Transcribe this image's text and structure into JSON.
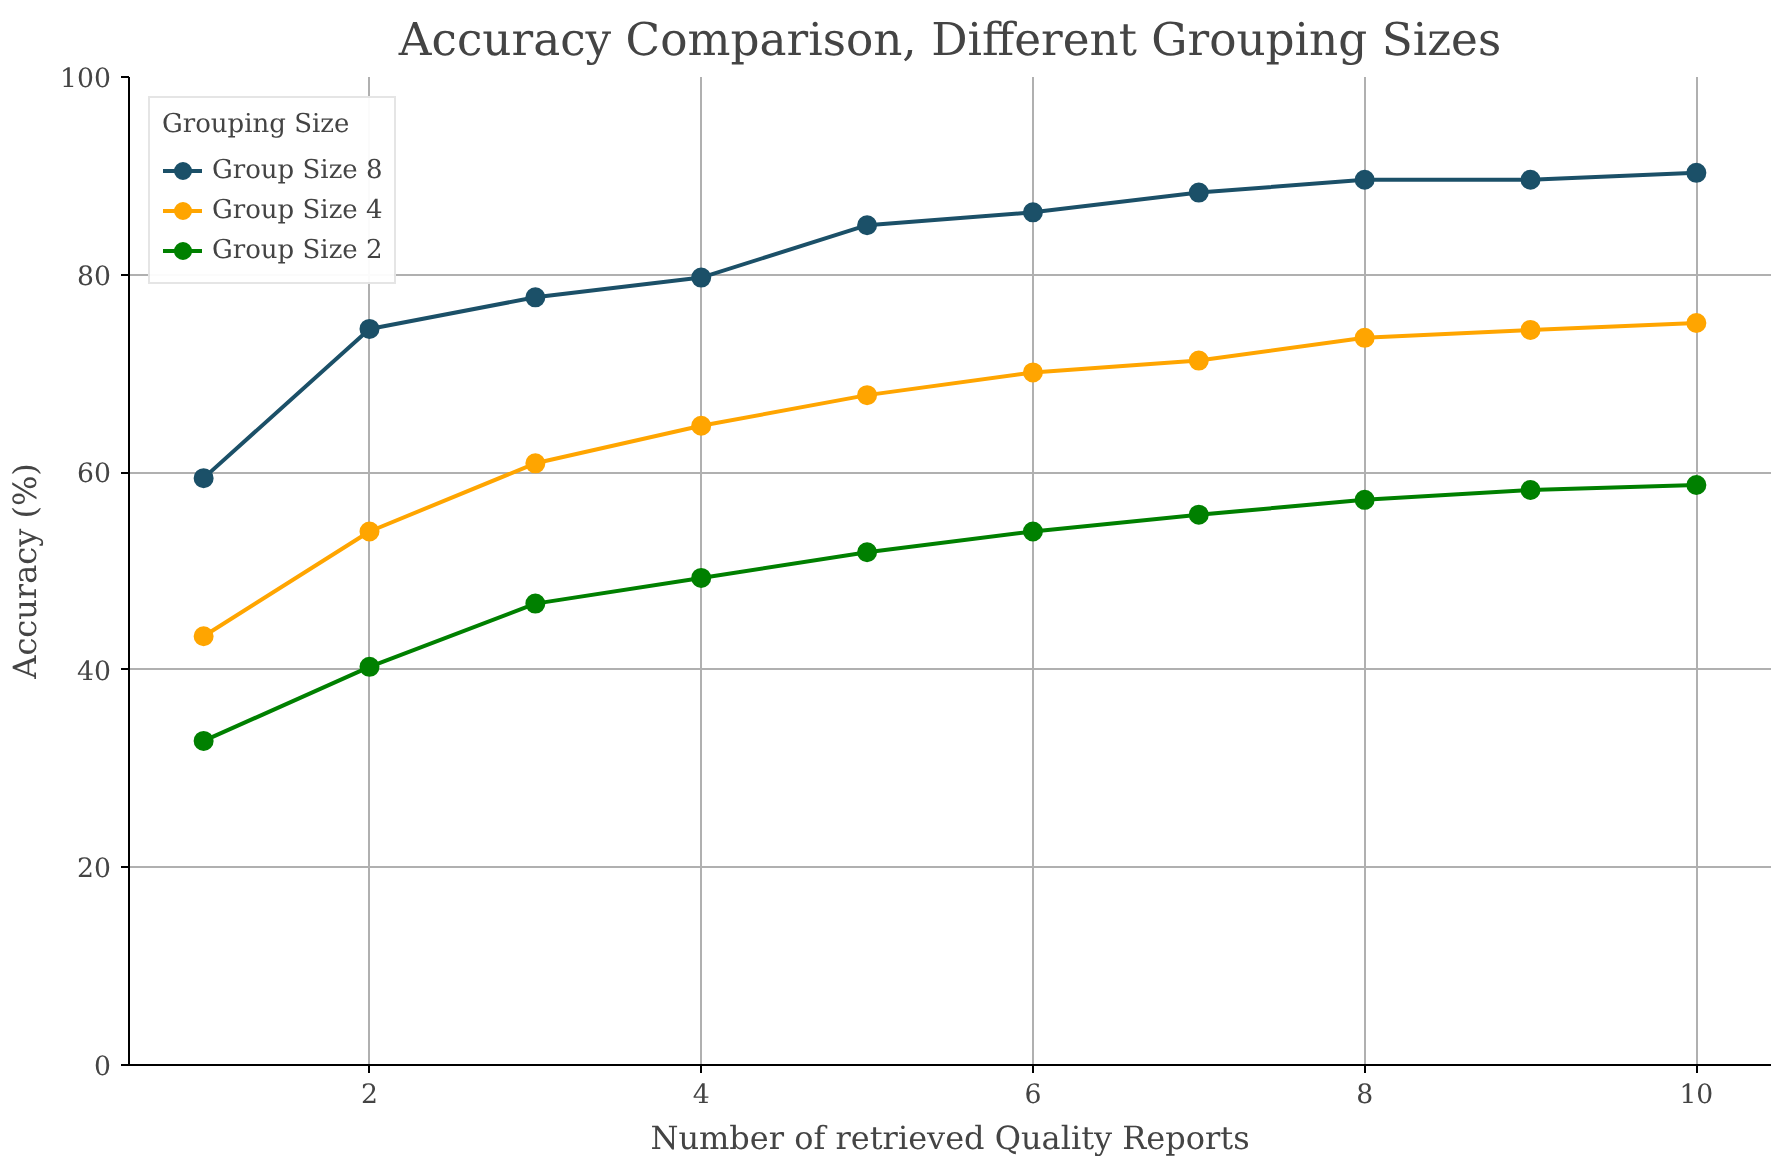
{
  "chart_data": {
    "type": "line",
    "title": "Accuracy Comparison, Different Grouping Sizes",
    "xlabel": "Number of retrieved Quality Reports",
    "ylabel": "Accuracy (%)",
    "legend_title": "Grouping Size",
    "x": [
      1,
      2,
      3,
      4,
      5,
      6,
      7,
      8,
      9,
      10
    ],
    "series": [
      {
        "name": "Group Size 8",
        "color": "#1b5068",
        "values": [
          59.4,
          74.5,
          77.7,
          79.7,
          85.0,
          86.3,
          88.3,
          89.6,
          89.6,
          90.3
        ]
      },
      {
        "name": "Group Size 4",
        "color": "#ffa500",
        "values": [
          43.4,
          54.0,
          60.9,
          64.7,
          67.8,
          70.1,
          71.3,
          73.6,
          74.4,
          75.1
        ]
      },
      {
        "name": "Group Size 2",
        "color": "#008000",
        "values": [
          32.8,
          40.3,
          46.7,
          49.3,
          51.9,
          54.0,
          55.7,
          57.2,
          58.2,
          58.7
        ]
      }
    ],
    "xlim": [
      0.55,
      10.45
    ],
    "ylim": [
      0,
      100
    ],
    "xticks": [
      2,
      4,
      6,
      8,
      10
    ],
    "yticks": [
      0,
      20,
      40,
      60,
      80,
      100
    ],
    "grid": true,
    "legend": "top left",
    "marker": "circle",
    "line_style": "solid"
  }
}
